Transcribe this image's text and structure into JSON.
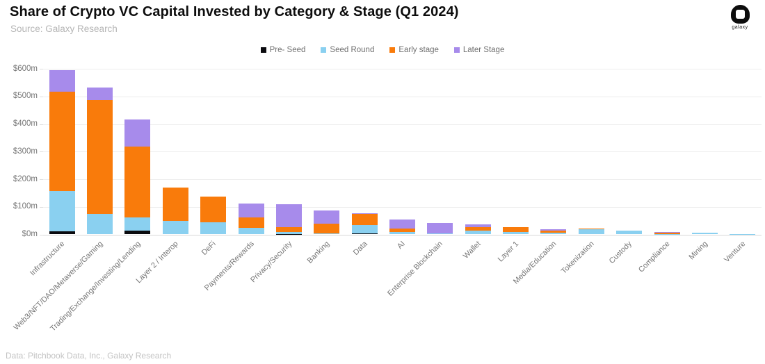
{
  "header": {
    "title": "Share of Crypto VC Capital Invested by Category & Stage (Q1 2024)",
    "subtitle": "Source: Galaxy Research",
    "logo_text": "galaxy"
  },
  "footer": {
    "text": "Data: Pitchbook Data, Inc., Galaxy Research"
  },
  "chart_data": {
    "type": "bar",
    "variant": "stacked",
    "title": "Share of Crypto VC Capital Invested by Category & Stage (Q1 2024)",
    "xlabel": "",
    "ylabel": "",
    "ylim": [
      0,
      600
    ],
    "ytick_step": 100,
    "ytick_labels": [
      "$0m",
      "$100m",
      "$200m",
      "$300m",
      "$400m",
      "$500m",
      "$600m"
    ],
    "grid": true,
    "legend_position": "top-center",
    "unit": "USD millions",
    "categories": [
      "Infrastructure",
      "Web3/NFT/DAO/Metaverse/Gaming",
      "Trading/Exchange/Investing/Lending",
      "Layer 2 / Interop",
      "DeFi",
      "Payments/Rewards",
      "Privacy/Security",
      "Banking",
      "Data",
      "AI",
      "Enterprise Blockchain",
      "Wallet",
      "Layer 1",
      "Media/Education",
      "Tokenization",
      "Custody",
      "Compliance",
      "Mining",
      "Venture"
    ],
    "series": [
      {
        "name": "Pre- Seed",
        "color": "#0b0b0f",
        "values": [
          11,
          0,
          13,
          0,
          0,
          0,
          2,
          0,
          3,
          0,
          0,
          0,
          0,
          0,
          0,
          0,
          0,
          0,
          0
        ]
      },
      {
        "name": "Seed Round",
        "color": "#8ad0f0",
        "values": [
          146,
          73,
          48,
          49,
          45,
          23,
          7,
          4,
          30,
          8,
          4,
          15,
          10,
          6,
          20,
          15,
          1,
          6,
          1
        ]
      },
      {
        "name": "Early stage",
        "color": "#f97b0b",
        "values": [
          361,
          414,
          256,
          121,
          93,
          38,
          18,
          36,
          41,
          13,
          0,
          12,
          17,
          9,
          1,
          0,
          5,
          0,
          0
        ]
      },
      {
        "name": "Later Stage",
        "color": "#a78beb",
        "values": [
          77,
          46,
          100,
          0,
          0,
          52,
          82,
          48,
          2,
          33,
          38,
          10,
          0,
          4,
          0,
          0,
          2,
          0,
          0
        ]
      }
    ]
  }
}
